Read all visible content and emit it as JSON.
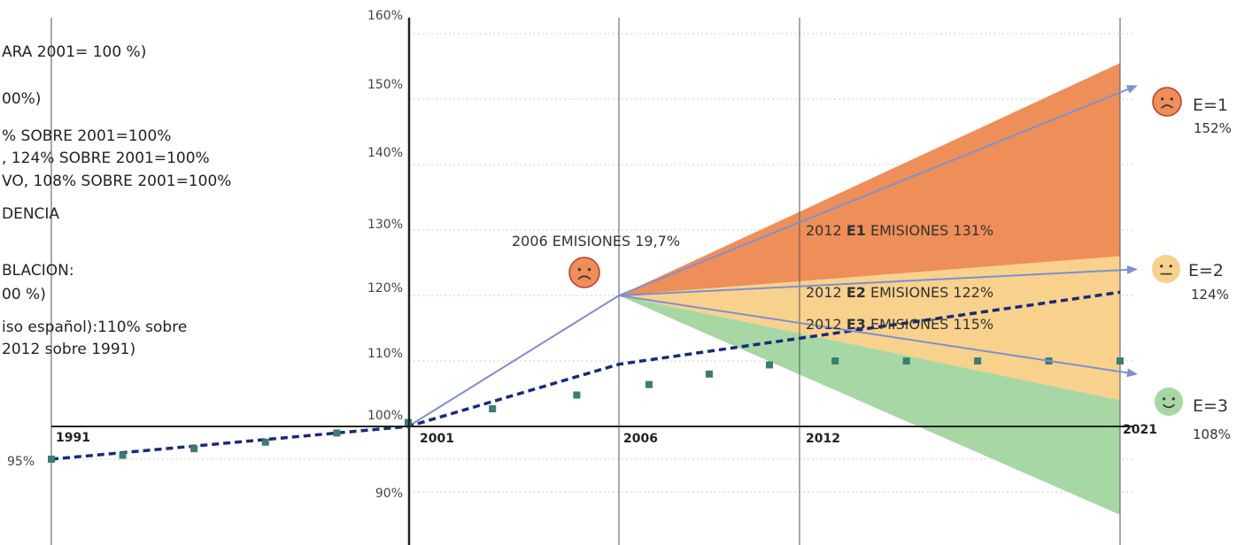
{
  "chart_data": {
    "type": "line",
    "title": "",
    "ylim": [
      85,
      165
    ],
    "y_ticks": [
      "90%",
      "100%",
      "110%",
      "120%",
      "130%",
      "140%",
      "150%",
      "160%"
    ],
    "x_tick_labels": [
      "1991",
      "2001",
      "2006",
      "2012",
      "2021"
    ],
    "left_label": "95%",
    "legend_lines": [
      "ARA 2001= 100 %)",
      "00%)",
      "% SOBRE 2001=100%",
      ", 124% SOBRE 2001=100%",
      "VO, 108% SOBRE 2001=100%",
      "DENCIA",
      "BLACION:",
      "00 %)",
      "iso español):110% sobre",
      "2012 sobre 1991)"
    ],
    "series": [
      {
        "style": "solid-blue",
        "x": [
          2001,
          2006
        ],
        "y": [
          100,
          120
        ]
      },
      {
        "style": "dashed-navy",
        "x": [
          1991,
          2001,
          2006,
          2021
        ],
        "y": [
          95,
          100,
          109.5,
          120.5
        ]
      },
      {
        "style": "dotted-teal",
        "x": [
          1991,
          1993,
          1995,
          1997,
          1999,
          2001,
          2003,
          2005,
          2007,
          2009,
          2011,
          2013,
          2015,
          2017,
          2019,
          2021
        ],
        "y": [
          95,
          95.6,
          96.6,
          97.6,
          99,
          100.6,
          102.7,
          104.8,
          106.4,
          108,
          109.4,
          110,
          110,
          110,
          110,
          110
        ]
      },
      {
        "name": "E=1",
        "style": "arrow",
        "x": [
          2006,
          2021
        ],
        "y": [
          120,
          152
        ]
      },
      {
        "name": "E=2",
        "style": "arrow",
        "x": [
          2006,
          2021
        ],
        "y": [
          120,
          124
        ]
      },
      {
        "name": "E=3",
        "style": "arrow",
        "x": [
          2006,
          2021
        ],
        "y": [
          120,
          108
        ]
      }
    ],
    "fans": [
      {
        "color": "#ee8e58",
        "top_2021": 155.5,
        "bottom_2021": 126
      },
      {
        "color": "#f8d18d",
        "top_2021": 126,
        "bottom_2021": 104
      },
      {
        "color": "#a7d7a4",
        "top_2021": 104,
        "bottom_2021": 86.5
      }
    ],
    "scenarios": [
      {
        "label": "E=1",
        "value": "152%",
        "face": "sad",
        "color": "#ee8e58"
      },
      {
        "label": "E=2",
        "value": "124%",
        "face": "neutral",
        "color": "#f8d18d"
      },
      {
        "label": "E=3",
        "value": "108%",
        "face": "happy",
        "color": "#a7d7a4"
      }
    ],
    "annotations": {
      "emis2006": "2006 EMISIONES 19,7%",
      "e1": {
        "pre": "2012 ",
        "bold": "E1",
        "post": " EMISIONES 131%"
      },
      "e2": {
        "pre": "2012 ",
        "bold": "E2",
        "post": " EMISIONES 122%"
      },
      "e3": {
        "pre": "2012 ",
        "bold": "E3",
        "post": " EMISIONES 115%"
      }
    },
    "colors": {
      "arrow": "#7d8fd0",
      "dashed": "#1a2a7a",
      "dotted": "#3a7d72",
      "axis": "#222222",
      "grid": "#cccccc"
    }
  }
}
